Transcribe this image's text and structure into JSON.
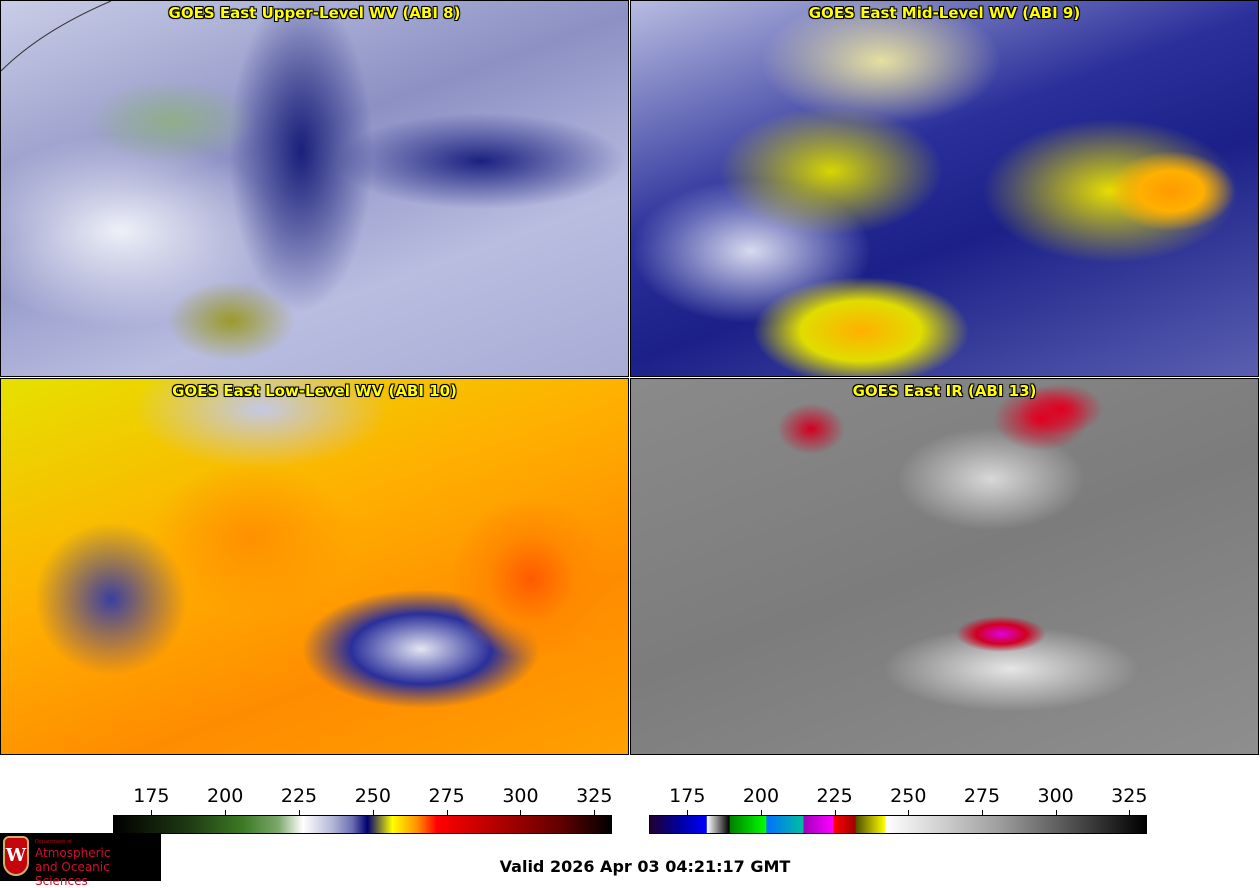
{
  "panels": [
    {
      "title": "GOES East Upper-Level WV (ABI 8)"
    },
    {
      "title": "GOES East Mid-Level WV (ABI 9)"
    },
    {
      "title": "GOES East Low-Level WV (ABI 10)"
    },
    {
      "title": "GOES East IR (ABI 13)"
    }
  ],
  "colorbars": [
    {
      "name": "water-vapor",
      "range": [
        162,
        331
      ],
      "ticks": [
        "175",
        "200",
        "225",
        "250",
        "275",
        "300",
        "325"
      ]
    },
    {
      "name": "infrared",
      "range": [
        162,
        331
      ],
      "ticks": [
        "175",
        "200",
        "225",
        "250",
        "275",
        "300",
        "325"
      ]
    }
  ],
  "logo": {
    "dept": "Department of",
    "line1": "Atmospheric",
    "line2": "and Oceanic Sciences",
    "crest_letter": "W"
  },
  "valid_time": "Valid 2026 Apr 03 04:21:17 GMT"
}
